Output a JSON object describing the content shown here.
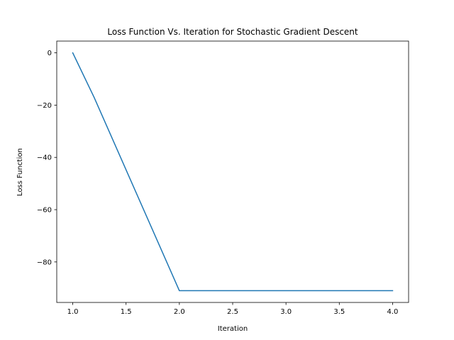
{
  "chart_data": {
    "type": "line",
    "title": "Loss Function Vs. Iteration for Stochastic Gradient Descent",
    "xlabel": "Iteration",
    "ylabel": "Loss Function",
    "xlim": [
      0.85,
      4.15
    ],
    "ylim": [
      -95.5,
      4.5
    ],
    "grid": false,
    "series": [
      {
        "color": "#1f77b4",
        "x": [
          1.0,
          1.2,
          2.0,
          3.0,
          4.0
        ],
        "y": [
          0,
          -17,
          -91,
          -91,
          -91
        ]
      }
    ],
    "xticks": [
      {
        "value": 1.0,
        "label": "1.0"
      },
      {
        "value": 1.5,
        "label": "1.5"
      },
      {
        "value": 2.0,
        "label": "2.0"
      },
      {
        "value": 2.5,
        "label": "2.5"
      },
      {
        "value": 3.0,
        "label": "3.0"
      },
      {
        "value": 3.5,
        "label": "3.5"
      },
      {
        "value": 4.0,
        "label": "4.0"
      }
    ],
    "yticks": [
      {
        "value": 0,
        "label": "0"
      },
      {
        "value": -20,
        "label": "−20"
      },
      {
        "value": -40,
        "label": "−40"
      },
      {
        "value": -60,
        "label": "−60"
      },
      {
        "value": -80,
        "label": "−80"
      }
    ]
  }
}
